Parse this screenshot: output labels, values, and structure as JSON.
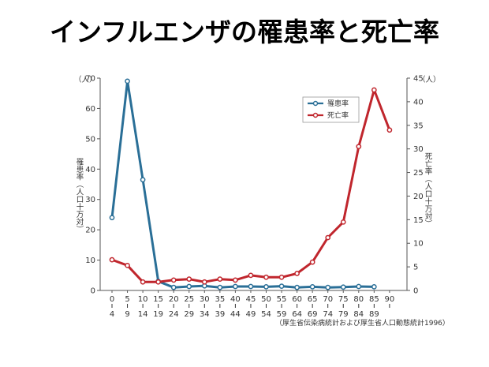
{
  "title": "インフルエンザの罹患率と死亡率",
  "source_note": "（厚生省伝染病統計および厚生省人口動態統計1996）",
  "colors": {
    "morbidity": "#2a6f97",
    "mortality": "#c0262d",
    "axis": "#555555"
  },
  "chart_data": {
    "type": "line",
    "x_tick_labels": [
      [
        "0",
        "4"
      ],
      [
        "5",
        "9"
      ],
      [
        "10",
        "14"
      ],
      [
        "15",
        "19"
      ],
      [
        "20",
        "24"
      ],
      [
        "25",
        "29"
      ],
      [
        "30",
        "34"
      ],
      [
        "35",
        "39"
      ],
      [
        "40",
        "44"
      ],
      [
        "45",
        "49"
      ],
      [
        "50",
        "54"
      ],
      [
        "55",
        "59"
      ],
      [
        "60",
        "64"
      ],
      [
        "65",
        "69"
      ],
      [
        "70",
        "74"
      ],
      [
        "75",
        "79"
      ],
      [
        "80",
        "84"
      ],
      [
        "85",
        "89"
      ],
      [
        "90",
        ""
      ]
    ],
    "left_axis": {
      "label": "罹患率（人口十万対）",
      "unit": "（人）",
      "ylim": [
        0,
        70
      ],
      "ticks": [
        0,
        10,
        20,
        30,
        40,
        50,
        60,
        70
      ]
    },
    "right_axis": {
      "label": "死亡率（人口十万対）",
      "unit": "（人）",
      "ylim": [
        0,
        45
      ],
      "ticks": [
        0,
        5,
        10,
        15,
        20,
        25,
        30,
        35,
        40,
        45
      ]
    },
    "legend": [
      "罹患率",
      "死亡率"
    ],
    "series": [
      {
        "name": "罹患率",
        "axis": "left",
        "values": [
          24,
          69,
          36.5,
          3,
          1,
          1.3,
          1.5,
          1,
          1.3,
          1.3,
          1.2,
          1.4,
          1,
          1.2,
          1,
          1.1,
          1.3,
          1.2
        ]
      },
      {
        "name": "死亡率",
        "axis": "right",
        "values": [
          6.5,
          5.3,
          1.8,
          1.8,
          2.2,
          2.4,
          1.8,
          2.4,
          2.2,
          3.2,
          2.8,
          2.8,
          3.6,
          6,
          11.2,
          14.5,
          30.5,
          42.5,
          34
        ]
      }
    ]
  }
}
